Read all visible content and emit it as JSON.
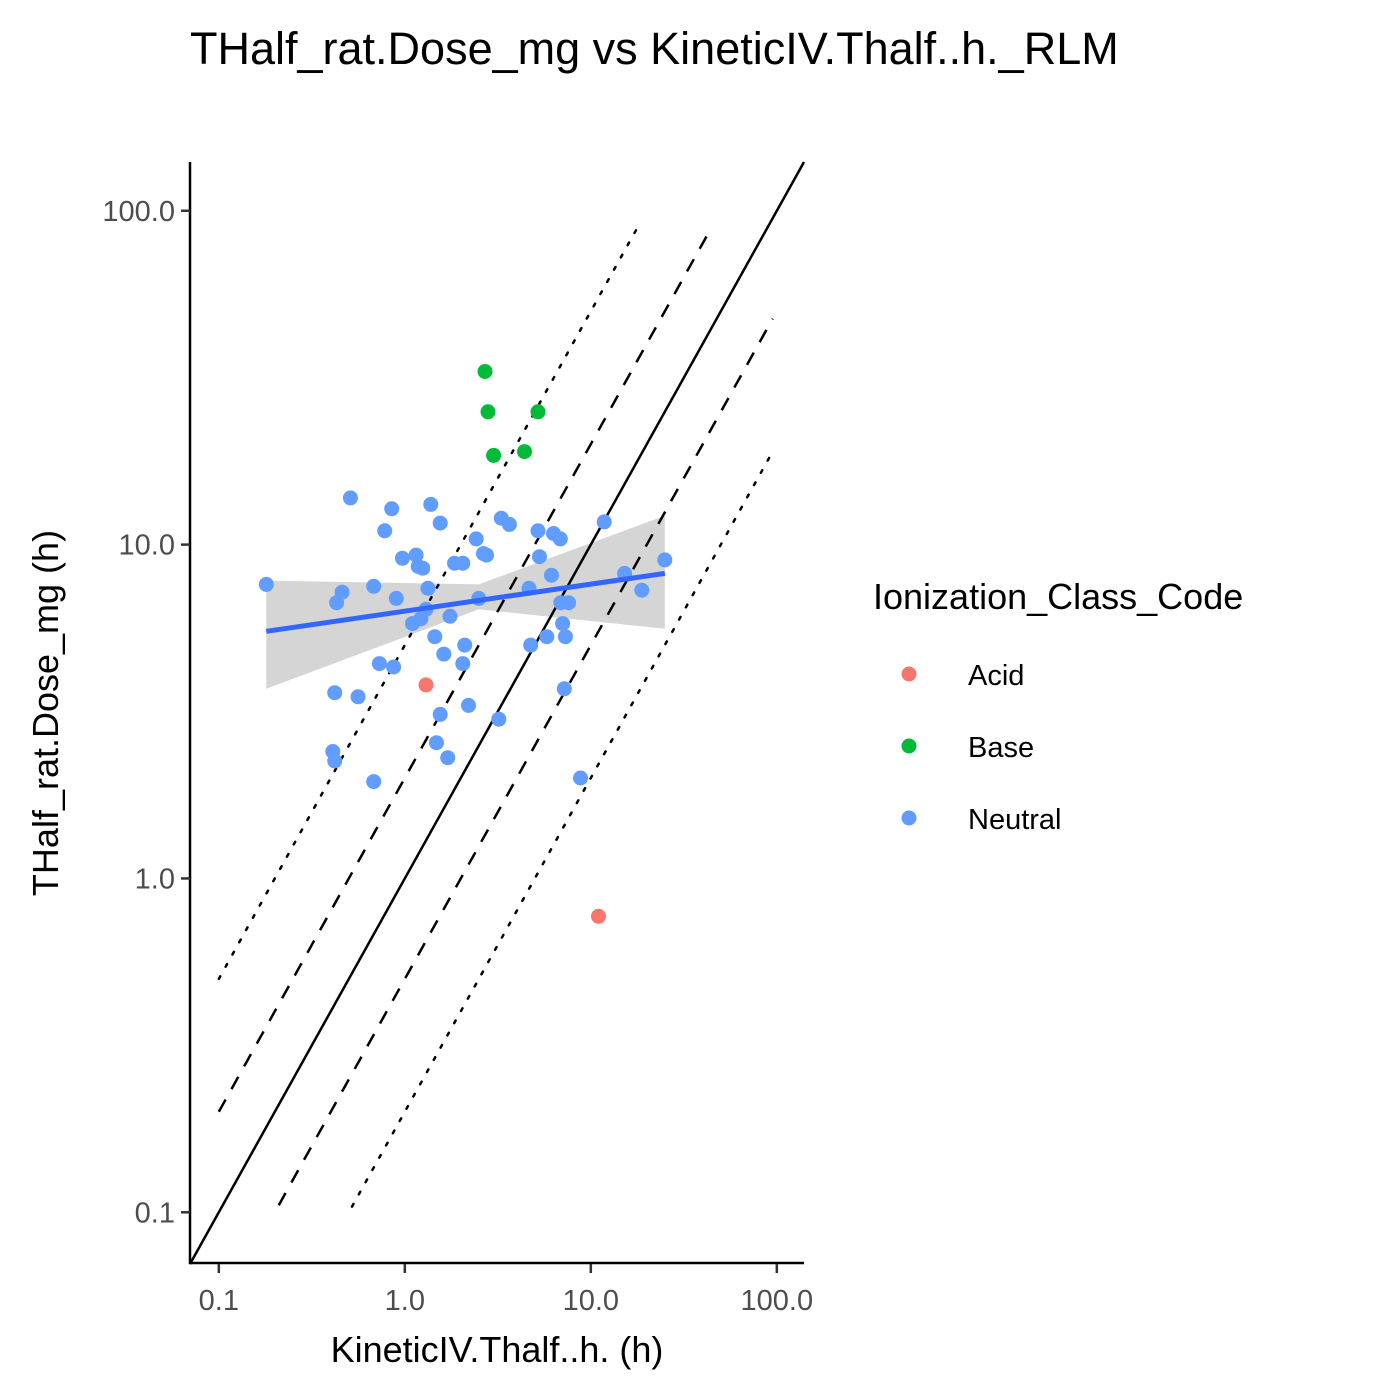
{
  "chart_data": {
    "type": "scatter",
    "title": "THalf_rat.Dose_mg vs KineticIV.Thalf..h._RLM",
    "xlabel": "KineticIV.Thalf..h. (h)",
    "ylabel": "THalf_rat.Dose_mg (h)",
    "x_scale": "log10",
    "y_scale": "log10",
    "xlim": [
      0.07,
      140
    ],
    "ylim": [
      0.07,
      140
    ],
    "x_ticks": [
      0.1,
      1,
      10,
      100
    ],
    "x_tick_labels": [
      "0.1",
      "1.0",
      "10.0",
      "100.0"
    ],
    "y_ticks": [
      0.1,
      1,
      10,
      100
    ],
    "y_tick_labels": [
      "0.1",
      "1.0",
      "10.0",
      "100.0"
    ],
    "legend": {
      "title": "Ionization_Class_Code",
      "position": "right",
      "entries": [
        {
          "label": "Acid",
          "color": "#f8766d"
        },
        {
          "label": "Base",
          "color": "#00ba38"
        },
        {
          "label": "Neutral",
          "color": "#619cff"
        }
      ]
    },
    "reference_lines": [
      {
        "name": "identity",
        "style": "solid",
        "factor": 1,
        "x_range": [
          0.07,
          140
        ]
      },
      {
        "name": "2-fold upper",
        "style": "dashed",
        "factor": 2,
        "x_range": [
          0.1,
          45
        ]
      },
      {
        "name": "2-fold lower",
        "style": "dashed",
        "factor": 0.5,
        "x_range": [
          0.21,
          95
        ]
      },
      {
        "name": "5-fold upper",
        "style": "dotted",
        "factor": 5,
        "x_range": [
          0.1,
          18
        ]
      },
      {
        "name": "5-fold lower",
        "style": "dotted",
        "factor": 0.2,
        "x_range": [
          0.52,
          95
        ]
      }
    ],
    "regression": {
      "color": "#3366ff",
      "band_color": "#d3d3d3",
      "x_range": [
        0.18,
        25
      ],
      "fit": [
        [
          0.18,
          5.5
        ],
        [
          25,
          8.2
        ]
      ],
      "band_upper": [
        [
          0.18,
          7.8
        ],
        [
          2.5,
          7.6
        ],
        [
          25,
          12.2
        ]
      ],
      "band_lower": [
        [
          0.18,
          3.7
        ],
        [
          2.5,
          6.4
        ],
        [
          25,
          5.6
        ]
      ]
    },
    "series": [
      {
        "name": "Acid",
        "color": "#f8766d",
        "points": [
          [
            1.3,
            3.8
          ],
          [
            11,
            0.77
          ]
        ]
      },
      {
        "name": "Base",
        "color": "#00ba38",
        "points": [
          [
            2.7,
            33
          ],
          [
            2.8,
            25
          ],
          [
            5.2,
            25
          ],
          [
            3.0,
            18.5
          ],
          [
            4.4,
            19
          ]
        ]
      },
      {
        "name": "Neutral",
        "color": "#619cff",
        "points": [
          [
            0.18,
            7.6
          ],
          [
            0.43,
            6.7
          ],
          [
            0.46,
            7.2
          ],
          [
            0.51,
            13.8
          ],
          [
            0.42,
            3.6
          ],
          [
            0.56,
            3.5
          ],
          [
            0.41,
            2.4
          ],
          [
            0.42,
            2.25
          ],
          [
            0.68,
            1.95
          ],
          [
            0.68,
            7.5
          ],
          [
            0.73,
            4.4
          ],
          [
            0.78,
            11
          ],
          [
            0.85,
            12.8
          ],
          [
            0.87,
            4.3
          ],
          [
            0.9,
            6.9
          ],
          [
            0.97,
            9.1
          ],
          [
            1.1,
            5.8
          ],
          [
            1.15,
            9.3
          ],
          [
            1.18,
            8.6
          ],
          [
            1.22,
            6.0
          ],
          [
            1.25,
            8.5
          ],
          [
            1.3,
            6.4
          ],
          [
            1.33,
            7.4
          ],
          [
            1.38,
            13.2
          ],
          [
            1.45,
            5.3
          ],
          [
            1.48,
            2.55
          ],
          [
            1.55,
            11.6
          ],
          [
            1.55,
            3.1
          ],
          [
            1.62,
            4.7
          ],
          [
            1.7,
            2.3
          ],
          [
            1.75,
            6.1
          ],
          [
            1.85,
            8.8
          ],
          [
            2.05,
            8.8
          ],
          [
            2.05,
            4.4
          ],
          [
            2.1,
            5.0
          ],
          [
            2.2,
            3.3
          ],
          [
            2.42,
            10.4
          ],
          [
            2.5,
            6.9
          ],
          [
            2.65,
            9.4
          ],
          [
            2.75,
            9.3
          ],
          [
            3.2,
            3.0
          ],
          [
            3.3,
            12.0
          ],
          [
            3.65,
            11.5
          ],
          [
            4.65,
            7.4
          ],
          [
            4.75,
            5.0
          ],
          [
            5.2,
            11.0
          ],
          [
            5.3,
            9.2
          ],
          [
            5.8,
            5.3
          ],
          [
            6.15,
            8.1
          ],
          [
            6.3,
            10.8
          ],
          [
            6.85,
            10.4
          ],
          [
            6.9,
            6.7
          ],
          [
            7.05,
            5.8
          ],
          [
            7.2,
            3.7
          ],
          [
            7.3,
            5.3
          ],
          [
            7.6,
            6.7
          ],
          [
            8.8,
            2.0
          ],
          [
            11.8,
            11.7
          ],
          [
            15.2,
            8.2
          ],
          [
            18.8,
            7.3
          ],
          [
            25,
            9.0
          ]
        ]
      }
    ]
  }
}
